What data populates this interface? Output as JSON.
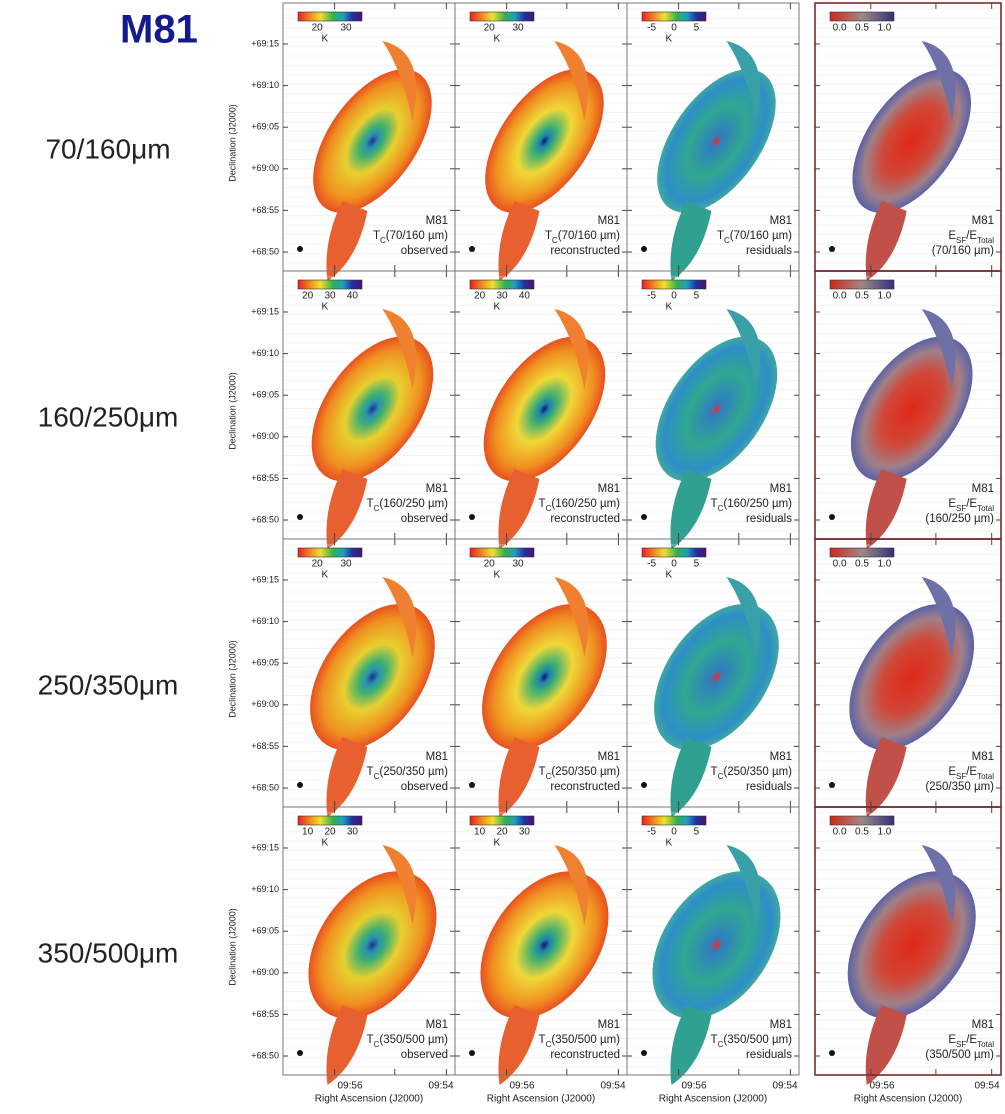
{
  "title": "M81",
  "y_axis": {
    "label": "Declination (J2000)",
    "ticks": [
      "+69:15",
      "+69:10",
      "+69:05",
      "+69:00",
      "+68:55",
      "+68:50"
    ]
  },
  "x_axis": {
    "label": "Right Ascension (J2000)",
    "ticks": [
      "09:56",
      "09:54"
    ]
  },
  "rows": [
    {
      "label": "70/160μm",
      "panels": [
        {
          "colorbar_ticks": [
            "20",
            "30"
          ],
          "unit": "K",
          "object": "M81",
          "quantity": [
            {
              "text": "T"
            },
            {
              "text": "C",
              "sub": true
            },
            {
              "text": "(70/160 µm)"
            }
          ],
          "note": "observed"
        },
        {
          "colorbar_ticks": [
            "20",
            "30"
          ],
          "unit": "K",
          "object": "M81",
          "quantity": [
            {
              "text": "T"
            },
            {
              "text": "C",
              "sub": true
            },
            {
              "text": "(70/160 µm)"
            }
          ],
          "note": "reconstructed"
        },
        {
          "colorbar_ticks": [
            "-5",
            "0",
            "5"
          ],
          "unit": "K",
          "object": "M81",
          "quantity": [
            {
              "text": "T"
            },
            {
              "text": "C",
              "sub": true
            },
            {
              "text": "(70/160 µm)"
            }
          ],
          "note": "residuals"
        },
        {
          "colorbar_ticks": [
            "0.0",
            "0.5",
            "1.0"
          ],
          "object": "M81",
          "quantity": [
            {
              "text": "E"
            },
            {
              "text": "SF",
              "sub": true
            },
            {
              "text": "/E"
            },
            {
              "text": "Total",
              "sub": true
            }
          ],
          "note": "(70/160 µm)"
        }
      ]
    },
    {
      "label": "160/250μm",
      "panels": [
        {
          "colorbar_ticks": [
            "20",
            "30",
            "40"
          ],
          "unit": "K",
          "object": "M81",
          "quantity": [
            {
              "text": "T"
            },
            {
              "text": "C",
              "sub": true
            },
            {
              "text": "(160/250 µm)"
            }
          ],
          "note": "observed"
        },
        {
          "colorbar_ticks": [
            "20",
            "30",
            "40"
          ],
          "unit": "K",
          "object": "M81",
          "quantity": [
            {
              "text": "T"
            },
            {
              "text": "C",
              "sub": true
            },
            {
              "text": "(160/250 µm)"
            }
          ],
          "note": "reconstructed"
        },
        {
          "colorbar_ticks": [
            "-5",
            "0",
            "5"
          ],
          "unit": "K",
          "object": "M81",
          "quantity": [
            {
              "text": "T"
            },
            {
              "text": "C",
              "sub": true
            },
            {
              "text": "(160/250 µm)"
            }
          ],
          "note": "residuals"
        },
        {
          "colorbar_ticks": [
            "0.0",
            "0.5",
            "1.0"
          ],
          "object": "M81",
          "quantity": [
            {
              "text": "E"
            },
            {
              "text": "SF",
              "sub": true
            },
            {
              "text": "/E"
            },
            {
              "text": "Total",
              "sub": true
            }
          ],
          "note": "(160/250 µm)"
        }
      ]
    },
    {
      "label": "250/350μm",
      "panels": [
        {
          "colorbar_ticks": [
            "20",
            "30"
          ],
          "unit": "K",
          "object": "M81",
          "quantity": [
            {
              "text": "T"
            },
            {
              "text": "C",
              "sub": true
            },
            {
              "text": "(250/350 µm)"
            }
          ],
          "note": "observed"
        },
        {
          "colorbar_ticks": [
            "20",
            "30"
          ],
          "unit": "K",
          "object": "M81",
          "quantity": [
            {
              "text": "T"
            },
            {
              "text": "C",
              "sub": true
            },
            {
              "text": "(250/350 µm)"
            }
          ],
          "note": "reconstructed"
        },
        {
          "colorbar_ticks": [
            "-5",
            "0",
            "5"
          ],
          "unit": "K",
          "object": "M81",
          "quantity": [
            {
              "text": "T"
            },
            {
              "text": "C",
              "sub": true
            },
            {
              "text": "(250/350 µm)"
            }
          ],
          "note": "residuals"
        },
        {
          "colorbar_ticks": [
            "0.0",
            "0.5",
            "1.0"
          ],
          "object": "M81",
          "quantity": [
            {
              "text": "E"
            },
            {
              "text": "SF",
              "sub": true
            },
            {
              "text": "/E"
            },
            {
              "text": "Total",
              "sub": true
            }
          ],
          "note": "(250/350 µm)"
        }
      ]
    },
    {
      "label": "350/500μm",
      "panels": [
        {
          "colorbar_ticks": [
            "10",
            "20",
            "30"
          ],
          "unit": "K",
          "object": "M81",
          "quantity": [
            {
              "text": "T"
            },
            {
              "text": "C",
              "sub": true
            },
            {
              "text": "(350/500 µm)"
            }
          ],
          "note": "observed"
        },
        {
          "colorbar_ticks": [
            "10",
            "20",
            "30"
          ],
          "unit": "K",
          "object": "M81",
          "quantity": [
            {
              "text": "T"
            },
            {
              "text": "C",
              "sub": true
            },
            {
              "text": "(350/500 µm)"
            }
          ],
          "note": "reconstructed"
        },
        {
          "colorbar_ticks": [
            "-5",
            "0",
            "5"
          ],
          "unit": "K",
          "object": "M81",
          "quantity": [
            {
              "text": "T"
            },
            {
              "text": "C",
              "sub": true
            },
            {
              "text": "(350/500 µm)"
            }
          ],
          "note": "residuals"
        },
        {
          "colorbar_ticks": [
            "0.0",
            "0.5",
            "1.0"
          ],
          "object": "M81",
          "quantity": [
            {
              "text": "E"
            },
            {
              "text": "SF",
              "sub": true
            },
            {
              "text": "/E"
            },
            {
              "text": "Total",
              "sub": true
            }
          ],
          "note": "(350/500 µm)"
        }
      ]
    }
  ]
}
